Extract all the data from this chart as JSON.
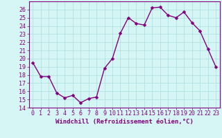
{
  "x": [
    0,
    1,
    2,
    3,
    4,
    5,
    6,
    7,
    8,
    9,
    10,
    11,
    12,
    13,
    14,
    15,
    16,
    17,
    18,
    19,
    20,
    21,
    22,
    23
  ],
  "y": [
    19.5,
    17.8,
    17.8,
    15.8,
    15.2,
    15.5,
    14.6,
    15.1,
    15.3,
    18.8,
    20.0,
    23.1,
    25.0,
    24.3,
    24.1,
    26.2,
    26.3,
    25.3,
    25.0,
    25.7,
    24.4,
    23.4,
    21.2,
    19.0
  ],
  "line_color": "#800080",
  "marker_color": "#800080",
  "bg_color": "#d6f5f5",
  "grid_color": "#aadddd",
  "xlabel": "Windchill (Refroidissement éolien,°C)",
  "ylim": [
    14,
    27
  ],
  "xlim_min": -0.5,
  "xlim_max": 23.5,
  "yticks": [
    14,
    15,
    16,
    17,
    18,
    19,
    20,
    21,
    22,
    23,
    24,
    25,
    26
  ],
  "xticks": [
    0,
    1,
    2,
    3,
    4,
    5,
    6,
    7,
    8,
    9,
    10,
    11,
    12,
    13,
    14,
    15,
    16,
    17,
    18,
    19,
    20,
    21,
    22,
    23
  ],
  "xlabel_fontsize": 6.5,
  "tick_fontsize": 6.0,
  "line_width": 1.0,
  "marker_size": 2.5
}
